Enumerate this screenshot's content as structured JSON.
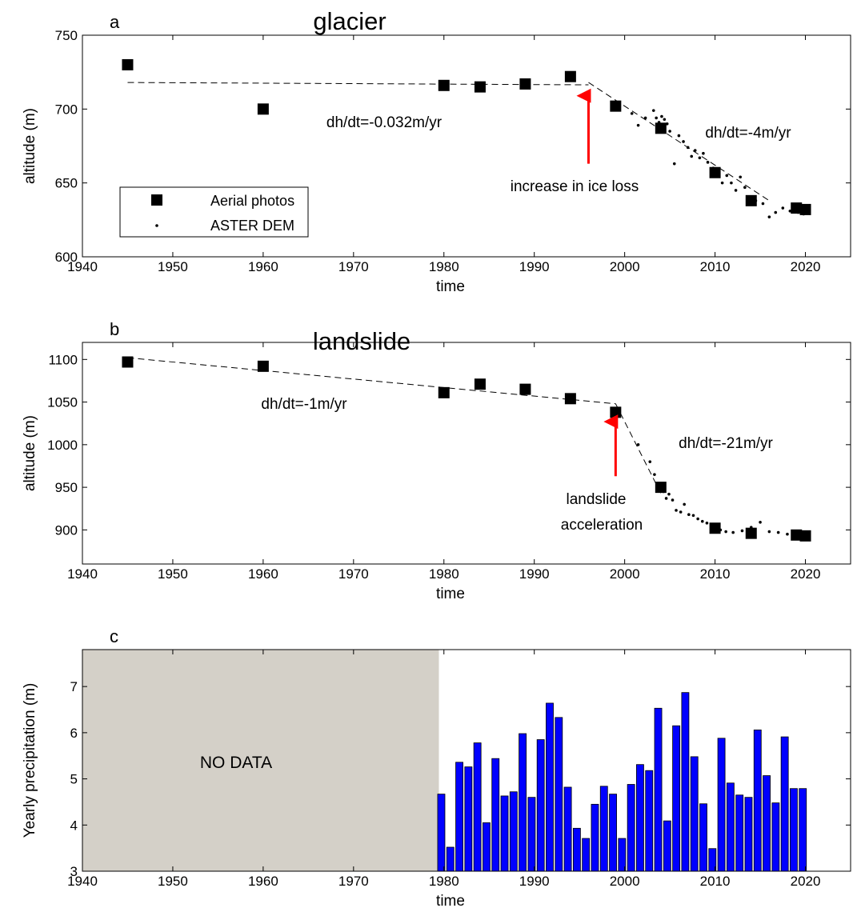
{
  "chart_data": [
    {
      "type": "scatter",
      "panel_label": "a",
      "title": "glacier",
      "xlabel": "time",
      "ylabel": "altitude (m)",
      "xlim": [
        1940,
        2025
      ],
      "ylim": [
        600,
        750
      ],
      "xticks": [
        1940,
        1950,
        1960,
        1970,
        1980,
        1990,
        2000,
        2010,
        2020
      ],
      "yticks": [
        600,
        650,
        700,
        750
      ],
      "grid": false,
      "legend_position": "bottom-left",
      "series": [
        {
          "name": "Aerial photos",
          "marker": "square",
          "x": [
            1945,
            1960,
            1980,
            1984,
            1989,
            1994,
            1999,
            2004,
            2010,
            2014,
            2019,
            2020
          ],
          "y": [
            730,
            700,
            716,
            715,
            717,
            722,
            702,
            687,
            657,
            638,
            633,
            632
          ]
        },
        {
          "name": "ASTER DEM",
          "marker": "dot",
          "x": [
            2000.8,
            2001.5,
            2002.3,
            2003.2,
            2003.5,
            2003.8,
            2004.1,
            2004.4,
            2004.7,
            2005.0,
            2005.5,
            2006.0,
            2006.5,
            2007.0,
            2007.4,
            2007.8,
            2008.3,
            2008.7,
            2009.2,
            2009.8,
            2010.3,
            2010.8,
            2011.3,
            2011.8,
            2012.3,
            2012.8,
            2013.3,
            2013.8,
            2014.5,
            2015.3,
            2016.0,
            2016.7,
            2017.5,
            2018.3,
            2019.2,
            2019.8
          ],
          "y": [
            697,
            689,
            694,
            699,
            694,
            691,
            695,
            693,
            690,
            685,
            663,
            682,
            678,
            674,
            668,
            672,
            667,
            670,
            664,
            660,
            658,
            650,
            655,
            650,
            645,
            654,
            647,
            640,
            638,
            636,
            627,
            630,
            633,
            631,
            630,
            629
          ]
        }
      ],
      "fits": [
        {
          "label": "dh/dt=-0.032m/yr",
          "x": [
            1945,
            1996
          ],
          "y": [
            718,
            716.4
          ]
        },
        {
          "label": "dh/dt=-4m/yr",
          "x": [
            1996,
            2016
          ],
          "y": [
            718,
            638
          ]
        }
      ],
      "annotation": {
        "text": "increase in ice loss",
        "arrow_x": 1996,
        "arrow_y_from": 663,
        "arrow_y_to": 709
      }
    },
    {
      "type": "scatter",
      "panel_label": "b",
      "title": "landslide",
      "xlabel": "time",
      "ylabel": "altitude (m)",
      "xlim": [
        1940,
        2025
      ],
      "ylim": [
        860,
        1120
      ],
      "xticks": [
        1940,
        1950,
        1960,
        1970,
        1980,
        1990,
        2000,
        2010,
        2020
      ],
      "yticks": [
        900,
        950,
        1000,
        1050,
        1100
      ],
      "grid": false,
      "series": [
        {
          "name": "Aerial photos",
          "marker": "square",
          "x": [
            1945,
            1960,
            1980,
            1984,
            1989,
            1994,
            1999,
            2004,
            2010,
            2014,
            2019,
            2020
          ],
          "y": [
            1097,
            1092,
            1061,
            1071,
            1065,
            1054,
            1038,
            950,
            902,
            896,
            894,
            893
          ]
        },
        {
          "name": "ASTER DEM",
          "marker": "dot",
          "x": [
            2001.5,
            2002.8,
            2003.3,
            2004.3,
            2004.6,
            2004.9,
            2005.3,
            2005.7,
            2006.2,
            2006.6,
            2007.1,
            2007.6,
            2008.1,
            2008.6,
            2009.1,
            2009.6,
            2010.6,
            2011.2,
            2012.0,
            2013.0,
            2014.0,
            2015.0,
            2016.0,
            2017.0,
            2018.0
          ],
          "y": [
            1000,
            980,
            965,
            945,
            937,
            942,
            935,
            923,
            921,
            930,
            918,
            917,
            913,
            910,
            908,
            905,
            900,
            898,
            897,
            899,
            903,
            909,
            898,
            897,
            895
          ]
        }
      ],
      "fits": [
        {
          "label": "dh/dt=-1m/yr",
          "x": [
            1945,
            1999
          ],
          "y": [
            1102,
            1048
          ]
        },
        {
          "label": "dh/dt=-21m/yr",
          "x": [
            1999,
            2004
          ],
          "y": [
            1048,
            943
          ]
        }
      ],
      "annotation": {
        "text_lines": [
          "landslide",
          "acceleration"
        ],
        "arrow_x": 1999,
        "arrow_y_from": 963,
        "arrow_y_to": 1027
      }
    },
    {
      "type": "bar",
      "panel_label": "c",
      "xlabel": "time",
      "ylabel": "Yearly precipitation (m)",
      "xlim": [
        1940,
        2025
      ],
      "ylim": [
        3,
        7.8
      ],
      "xticks": [
        1940,
        1950,
        1960,
        1970,
        1980,
        1990,
        2000,
        2010,
        2020
      ],
      "yticks": [
        3,
        4,
        5,
        6,
        7
      ],
      "grid": false,
      "no_data_text": "NO DATA",
      "no_data_range": [
        1940,
        1979
      ],
      "no_data_color": "#d4d0c8",
      "bar_color": "#0000ff",
      "categories": [
        1979,
        1980,
        1981,
        1982,
        1983,
        1984,
        1985,
        1986,
        1987,
        1988,
        1989,
        1990,
        1991,
        1992,
        1993,
        1994,
        1995,
        1996,
        1997,
        1998,
        1999,
        2000,
        2001,
        2002,
        2003,
        2004,
        2005,
        2006,
        2007,
        2008,
        2009,
        2010,
        2011,
        2012,
        2013,
        2014,
        2015,
        2016,
        2017,
        2018,
        2019
      ],
      "values": [
        4.67,
        3.52,
        5.36,
        5.26,
        5.78,
        4.05,
        5.44,
        4.63,
        4.72,
        5.98,
        4.6,
        5.85,
        6.64,
        6.33,
        4.82,
        3.93,
        3.71,
        4.45,
        4.84,
        4.67,
        3.71,
        4.88,
        5.31,
        5.18,
        6.53,
        4.09,
        6.15,
        6.87,
        5.48,
        4.46,
        3.49,
        5.88,
        4.91,
        4.65,
        4.6,
        6.06,
        5.07,
        4.48,
        5.91,
        4.79,
        4.79
      ]
    }
  ]
}
